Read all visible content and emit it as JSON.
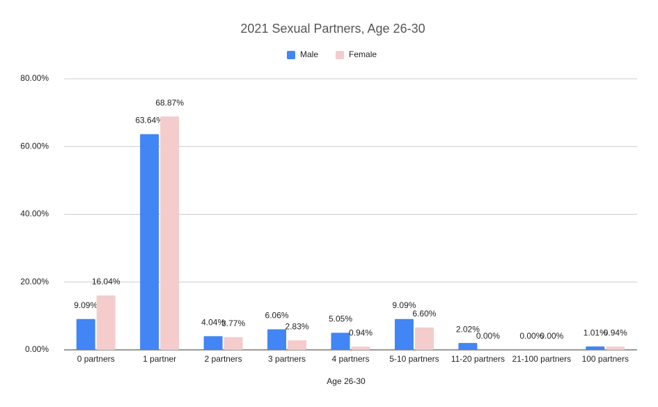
{
  "chart_data": {
    "type": "bar",
    "title": "2021 Sexual Partners, Age 26-30",
    "x_label": "Age 26-30",
    "categories": [
      "0 partners",
      "1 partner",
      "2 partners",
      "3 partners",
      "4 partners",
      "5-10 partners",
      "11-20 partners",
      "21-100 partners",
      "100 partners"
    ],
    "series": [
      {
        "name": "Male",
        "color": "#4285f4",
        "values": [
          9.09,
          63.64,
          4.04,
          6.06,
          5.05,
          9.09,
          2.02,
          0,
          1.01
        ],
        "value_labels": [
          "9.09%",
          "63.64%",
          "4.04%",
          "6.06%",
          "5.05%",
          "9.09%",
          "2.02%",
          "0.00%",
          "1.01%"
        ]
      },
      {
        "name": "Female",
        "color": "#f4cccc",
        "values": [
          16.04,
          68.87,
          3.77,
          2.83,
          0.94,
          6.6,
          0,
          0,
          0.94
        ],
        "value_labels": [
          "16.04%",
          "68.87%",
          "3.77%",
          "2.83%",
          "0.94%",
          "6.60%",
          "0.00%",
          "0.00%",
          "0.94%"
        ]
      }
    ],
    "ylim": [
      0,
      80
    ],
    "yticks": [
      {
        "value": 0,
        "label": "0.00%"
      },
      {
        "value": 20,
        "label": "20.00%"
      },
      {
        "value": 40,
        "label": "40.00%"
      },
      {
        "value": 60,
        "label": "60.00%"
      },
      {
        "value": 80,
        "label": "80.00%"
      }
    ],
    "grid": true,
    "legend": "top"
  }
}
